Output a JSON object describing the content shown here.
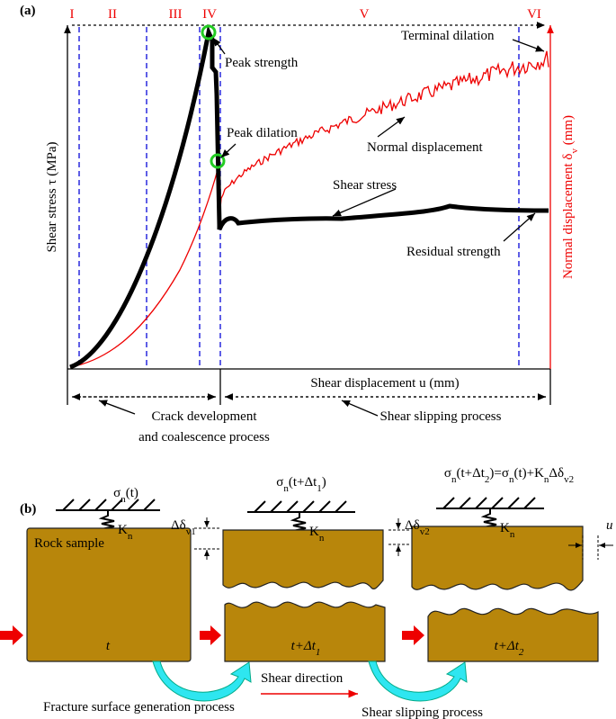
{
  "panel_a": {
    "label": "(a)",
    "stages": [
      "I",
      "II",
      "III",
      "IV",
      "V",
      "VI"
    ],
    "y_label": "Shear stress τ (MPa)",
    "y2_label": [
      "Normal displacement δ",
      "v",
      " (mm)"
    ],
    "x_label": "Shear displacement u (mm)",
    "annotations": {
      "peak_strength": "Peak strength",
      "peak_dilation": "Peak dilation",
      "terminal_dilation": "Terminal dilation",
      "normal_displacement": "Normal displacement",
      "shear_stress": "Shear stress",
      "residual_strength": "Residual strength"
    },
    "phases": {
      "crack": [
        "Crack development",
        "and coalescence process"
      ],
      "slipping": "Shear slipping process"
    }
  },
  "panel_b": {
    "label": "(b)",
    "loads": [
      [
        "σ",
        "n",
        "(t)"
      ],
      [
        "σ",
        "n",
        "(t+Δt",
        "1",
        ")"
      ],
      [
        "σ",
        "n",
        "(t+Δt",
        "2",
        ")=σ",
        "n",
        "(t)+K",
        "n",
        "Δδ",
        "v2"
      ]
    ],
    "springs": [
      [
        "K",
        "n"
      ],
      [
        "K",
        "n"
      ],
      [
        "K",
        "n"
      ]
    ],
    "gaps": [
      [
        "Δδ",
        "v1"
      ],
      [
        "Δδ",
        "v2"
      ]
    ],
    "shift": "u",
    "sample": "Rock sample",
    "times": [
      [
        "t"
      ],
      [
        "t+Δt",
        "1"
      ],
      [
        "t+Δt",
        "2"
      ]
    ],
    "shear_direction": "Shear direction",
    "processes": [
      "Fracture surface generation process",
      "Shear slipping process"
    ]
  }
}
